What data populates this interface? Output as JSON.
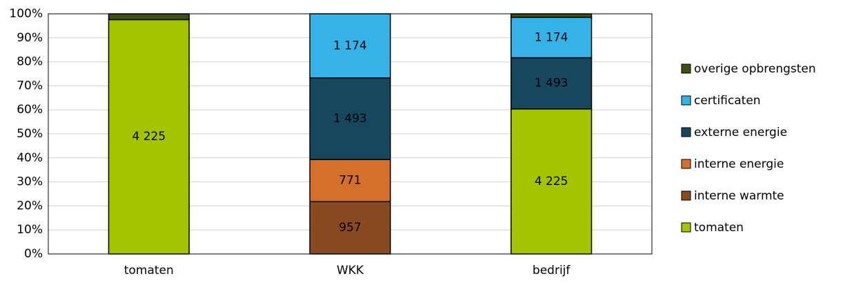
{
  "chart_data": {
    "type": "bar",
    "stacking": "percent",
    "categories": [
      "tomaten",
      "WKK",
      "bedrijf"
    ],
    "series": [
      {
        "name": "tomaten",
        "color": "#a4c400",
        "values": [
          4225,
          null,
          4225
        ],
        "value_labels": [
          "4 225",
          null,
          "4 225"
        ]
      },
      {
        "name": "interne warmte",
        "color": "#8a4a1f",
        "values": [
          null,
          957,
          null
        ],
        "value_labels": [
          null,
          "957",
          null
        ]
      },
      {
        "name": "interne energie",
        "color": "#d4702a",
        "values": [
          null,
          771,
          null
        ],
        "value_labels": [
          null,
          "771",
          null
        ]
      },
      {
        "name": "externe energie",
        "color": "#17475e",
        "values": [
          null,
          1493,
          1493
        ],
        "value_labels": [
          null,
          "1 493",
          "1 493"
        ]
      },
      {
        "name": "certificaten",
        "color": "#35b3e8",
        "values": [
          null,
          1174,
          1174
        ],
        "value_labels": [
          null,
          "1 174",
          "1 174"
        ]
      },
      {
        "name": "overige opbrengsten",
        "color": "#3d5016",
        "values": [
          105,
          null,
          105
        ]
      }
    ],
    "ylim": [
      0,
      100
    ],
    "yticks": [
      {
        "value": 0,
        "label": "0%"
      },
      {
        "value": 10,
        "label": "10%"
      },
      {
        "value": 20,
        "label": "20%"
      },
      {
        "value": 30,
        "label": "30%"
      },
      {
        "value": 40,
        "label": "40%"
      },
      {
        "value": 50,
        "label": "50%"
      },
      {
        "value": 60,
        "label": "60%"
      },
      {
        "value": 70,
        "label": "70%"
      },
      {
        "value": 80,
        "label": "80%"
      },
      {
        "value": 90,
        "label": "90%"
      },
      {
        "value": 100,
        "label": "100%"
      }
    ],
    "grid": true,
    "legend": "right"
  }
}
